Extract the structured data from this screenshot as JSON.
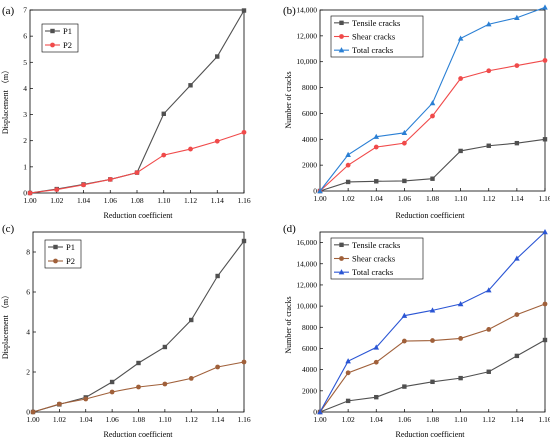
{
  "chart_data": [
    {
      "panel_label": "(a)",
      "type": "line",
      "xlabel": "Reduction coefficient",
      "ylabel": "Displacement （m）",
      "x": [
        1.0,
        1.02,
        1.04,
        1.06,
        1.08,
        1.1,
        1.12,
        1.14,
        1.16
      ],
      "xticks": [
        "1.00",
        "1.02",
        "1.04",
        "1.06",
        "1.08",
        "1.10",
        "1.12",
        "1.14",
        "1.16"
      ],
      "xlim": [
        1.0,
        1.16
      ],
      "ylim": [
        0,
        7
      ],
      "yticks": [
        "0",
        "1",
        "2",
        "3",
        "4",
        "5",
        "6",
        "7"
      ],
      "grid": false,
      "legend": "top-left",
      "series": [
        {
          "name": "P1",
          "color": "#505050",
          "marker": "square",
          "values": [
            0,
            0.15,
            0.33,
            0.52,
            0.78,
            3.03,
            4.12,
            5.22,
            6.98
          ]
        },
        {
          "name": "P2",
          "color": "#f04a4a",
          "marker": "circle",
          "values": [
            0,
            0.13,
            0.31,
            0.52,
            0.78,
            1.45,
            1.68,
            1.98,
            2.32
          ]
        }
      ]
    },
    {
      "panel_label": "(b)",
      "type": "line",
      "xlabel": "Reduction coefficient",
      "ylabel": "Number of cracks",
      "x": [
        1.0,
        1.02,
        1.04,
        1.06,
        1.08,
        1.1,
        1.12,
        1.14,
        1.16
      ],
      "xticks": [
        "1.00",
        "1.02",
        "1.04",
        "1.06",
        "1.08",
        "1.10",
        "1.12",
        "1.14",
        "1.16"
      ],
      "xlim": [
        1.0,
        1.16
      ],
      "ylim": [
        0,
        14000
      ],
      "yticks": [
        "0",
        "2000",
        "4000",
        "6000",
        "8000",
        "10,000",
        "12,000",
        "14,000"
      ],
      "grid": false,
      "legend": "top-left",
      "series": [
        {
          "name": "Tensile cracks",
          "color": "#505050",
          "marker": "square",
          "values": [
            0,
            700,
            750,
            780,
            950,
            3100,
            3500,
            3700,
            4000
          ]
        },
        {
          "name": "Shear cracks",
          "color": "#f04a4a",
          "marker": "circle",
          "values": [
            0,
            2000,
            3400,
            3700,
            5800,
            8700,
            9300,
            9700,
            10100
          ]
        },
        {
          "name": "Total cracks",
          "color": "#2a7fd4",
          "marker": "triangle",
          "values": [
            0,
            2800,
            4200,
            4500,
            6800,
            11800,
            12900,
            13400,
            14200
          ]
        }
      ]
    },
    {
      "panel_label": "(c)",
      "type": "line",
      "xlabel": "Reduction coefficient",
      "ylabel": "Displacement （m）",
      "x": [
        1.0,
        1.02,
        1.04,
        1.06,
        1.08,
        1.1,
        1.12,
        1.14,
        1.16
      ],
      "xticks": [
        "1.00",
        "1.02",
        "1.04",
        "1.06",
        "1.08",
        "1.10",
        "1.12",
        "1.14",
        "1.16"
      ],
      "xlim": [
        1.0,
        1.16
      ],
      "ylim": [
        0,
        9
      ],
      "yticks": [
        "0",
        "2",
        "4",
        "6",
        "8"
      ],
      "grid": false,
      "legend": "top-left",
      "series": [
        {
          "name": "P1",
          "color": "#505050",
          "marker": "square",
          "values": [
            0,
            0.38,
            0.73,
            1.5,
            2.45,
            3.25,
            4.6,
            6.8,
            8.55
          ]
        },
        {
          "name": "P2",
          "color": "#a0603a",
          "marker": "circle",
          "values": [
            0,
            0.4,
            0.65,
            1.0,
            1.25,
            1.4,
            1.68,
            2.25,
            2.5
          ]
        }
      ]
    },
    {
      "panel_label": "(d)",
      "type": "line",
      "xlabel": "Reduction coefficient",
      "ylabel": "Number of cracks",
      "x": [
        1.0,
        1.02,
        1.04,
        1.06,
        1.08,
        1.1,
        1.12,
        1.14,
        1.16
      ],
      "xticks": [
        "1.00",
        "1.02",
        "1.04",
        "1.06",
        "1.08",
        "1.10",
        "1.12",
        "1.14",
        "1.16"
      ],
      "xlim": [
        1.0,
        1.16
      ],
      "ylim": [
        0,
        17000
      ],
      "yticks": [
        "0",
        "2000",
        "4000",
        "6000",
        "8000",
        "10,000",
        "12,000",
        "14,000",
        "16,000"
      ],
      "grid": false,
      "legend": "top-left",
      "series": [
        {
          "name": "Tensile cracks",
          "color": "#505050",
          "marker": "square",
          "values": [
            0,
            1050,
            1400,
            2400,
            2850,
            3200,
            3800,
            5300,
            6800
          ]
        },
        {
          "name": "Shear cracks",
          "color": "#a0603a",
          "marker": "circle",
          "values": [
            0,
            3700,
            4700,
            6700,
            6750,
            6950,
            7800,
            9200,
            10200
          ]
        },
        {
          "name": "Total cracks",
          "color": "#2a55d4",
          "marker": "triangle",
          "values": [
            0,
            4800,
            6100,
            9100,
            9600,
            10200,
            11500,
            14500,
            17000
          ]
        }
      ]
    }
  ]
}
